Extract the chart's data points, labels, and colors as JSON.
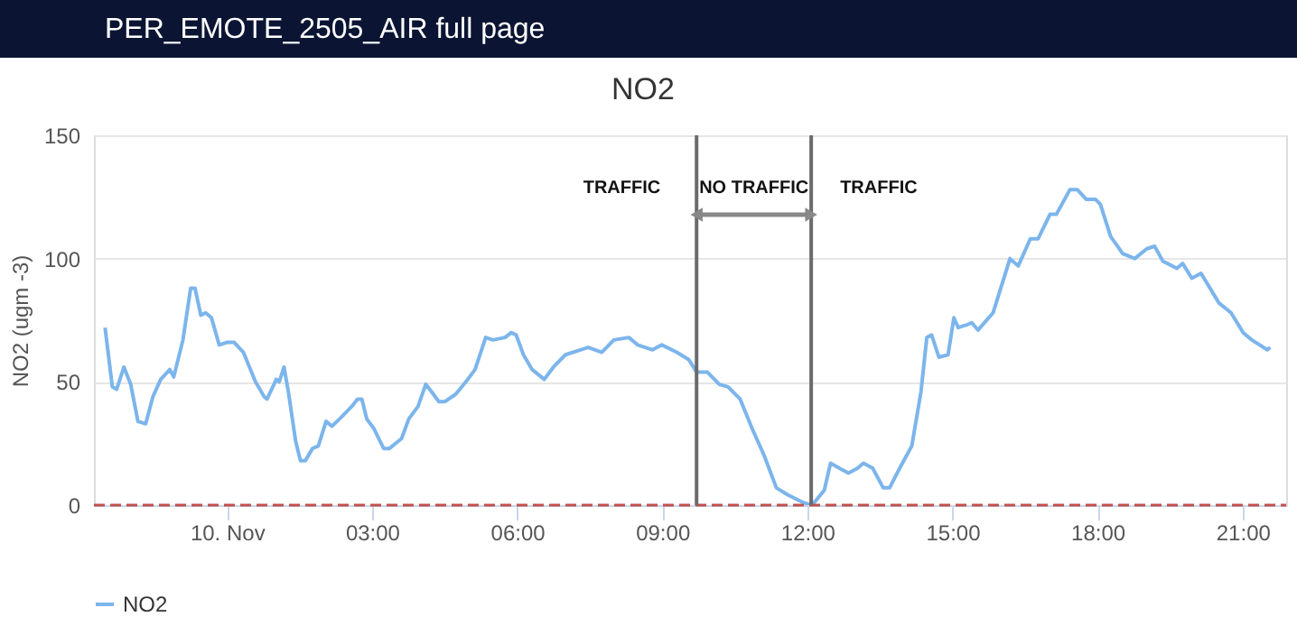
{
  "chart_data": {
    "type": "line",
    "title": "PER_EMOTE_2505_AIR full page",
    "subtitle": "NO2",
    "ylabel": "NO2 (ugm -3)",
    "xlim": [
      -2.75,
      21.9
    ],
    "ylim": [
      0,
      150
    ],
    "xticks": [
      {
        "value": 0,
        "label": "10. Nov"
      },
      {
        "value": 3,
        "label": "03:00"
      },
      {
        "value": 6,
        "label": "06:00"
      },
      {
        "value": 9,
        "label": "09:00"
      },
      {
        "value": 12,
        "label": "12:00"
      },
      {
        "value": 15,
        "label": "15:00"
      },
      {
        "value": 18,
        "label": "18:00"
      },
      {
        "value": 21,
        "label": "21:00"
      }
    ],
    "yticks": [
      0,
      50,
      100,
      150
    ],
    "grid": "y",
    "legend": "bottom",
    "marker": "none",
    "line_style": "solid",
    "series": [
      {
        "name": "NO2",
        "color": "#7cb5ec",
        "x": [
          -2.52,
          -2.37,
          -2.28,
          -2.13,
          -1.99,
          -1.84,
          -1.68,
          -1.53,
          -1.37,
          -1.18,
          -1.1,
          -0.91,
          -0.75,
          -0.66,
          -0.54,
          -0.44,
          -0.32,
          -0.16,
          0,
          0.15,
          0.34,
          0.59,
          0.77,
          0.83,
          1.02,
          1.08,
          1.18,
          1.27,
          1.42,
          1.52,
          1.62,
          1.77,
          1.89,
          2.05,
          2.17,
          2.33,
          2.58,
          2.7,
          2.79,
          2.89,
          3.04,
          3.24,
          3.36,
          3.61,
          3.76,
          3.95,
          4.11,
          4.23,
          4.38,
          4.51,
          4.73,
          4.94,
          5.13,
          5.35,
          5.5,
          5.75,
          5.88,
          5.98,
          6.13,
          6.31,
          6.56,
          6.75,
          7.0,
          7.31,
          7.47,
          7.75,
          8.0,
          8.31,
          8.49,
          8.8,
          8.99,
          9.3,
          9.55,
          9.71,
          9.93,
          10.18,
          10.36,
          10.61,
          10.86,
          11.11,
          11.36,
          11.61,
          11.92,
          12.1,
          12.35,
          12.48,
          12.66,
          12.85,
          13.04,
          13.16,
          13.35,
          13.57,
          13.7,
          13.91,
          14.16,
          14.35,
          14.47,
          14.57,
          14.72,
          14.91,
          15.03,
          15.12,
          15.28,
          15.4,
          15.53,
          15.84,
          16.19,
          16.36,
          16.61,
          16.77,
          17.02,
          17.15,
          17.43,
          17.58,
          17.77,
          17.96,
          18.06,
          18.27,
          18.52,
          18.77,
          19.02,
          19.18,
          19.35,
          19.64,
          19.76,
          19.95,
          20.14,
          20.51,
          20.76,
          21.01,
          21.19,
          21.51,
          21.57
        ],
        "values": [
          72,
          48,
          47,
          56,
          49,
          34,
          33,
          44,
          51,
          55,
          52,
          67,
          88,
          88,
          77,
          78,
          76,
          65,
          66,
          66,
          62,
          50,
          44,
          43,
          51,
          50,
          56,
          46,
          26,
          18,
          18,
          23,
          24,
          34,
          32,
          35,
          40,
          43,
          43,
          35,
          31,
          23,
          23,
          27,
          35,
          40,
          49,
          46,
          42,
          42,
          45,
          50,
          55,
          68,
          67,
          68,
          70,
          69,
          61,
          55,
          51,
          56,
          61,
          63,
          64,
          62,
          67,
          68,
          65,
          63,
          65,
          62,
          59,
          54,
          54,
          49,
          48,
          43,
          31,
          20,
          7,
          4,
          1,
          0,
          6,
          17,
          15,
          13,
          15,
          17,
          15,
          7,
          7,
          15,
          24,
          46,
          68,
          69,
          60,
          61,
          76,
          72,
          73,
          74,
          71,
          78,
          100,
          97,
          108,
          108,
          118,
          118,
          128,
          128,
          124,
          124,
          122,
          109,
          102,
          100,
          104,
          105,
          99,
          96,
          98,
          92,
          94,
          82,
          78,
          70,
          67,
          63,
          64
        ]
      }
    ],
    "ref_lines": [
      {
        "axis": "y",
        "value": 0,
        "color": "#c0504d",
        "line_style": "dashed"
      },
      {
        "axis": "x",
        "value": 9.71,
        "color": "#6b6b6b",
        "line_style": "solid"
      },
      {
        "axis": "x",
        "value": 12.08,
        "color": "#6b6b6b",
        "line_style": "solid"
      }
    ],
    "annotations": [
      "TRAFFIC",
      "NO TRAFFIC",
      "TRAFFIC"
    ]
  }
}
